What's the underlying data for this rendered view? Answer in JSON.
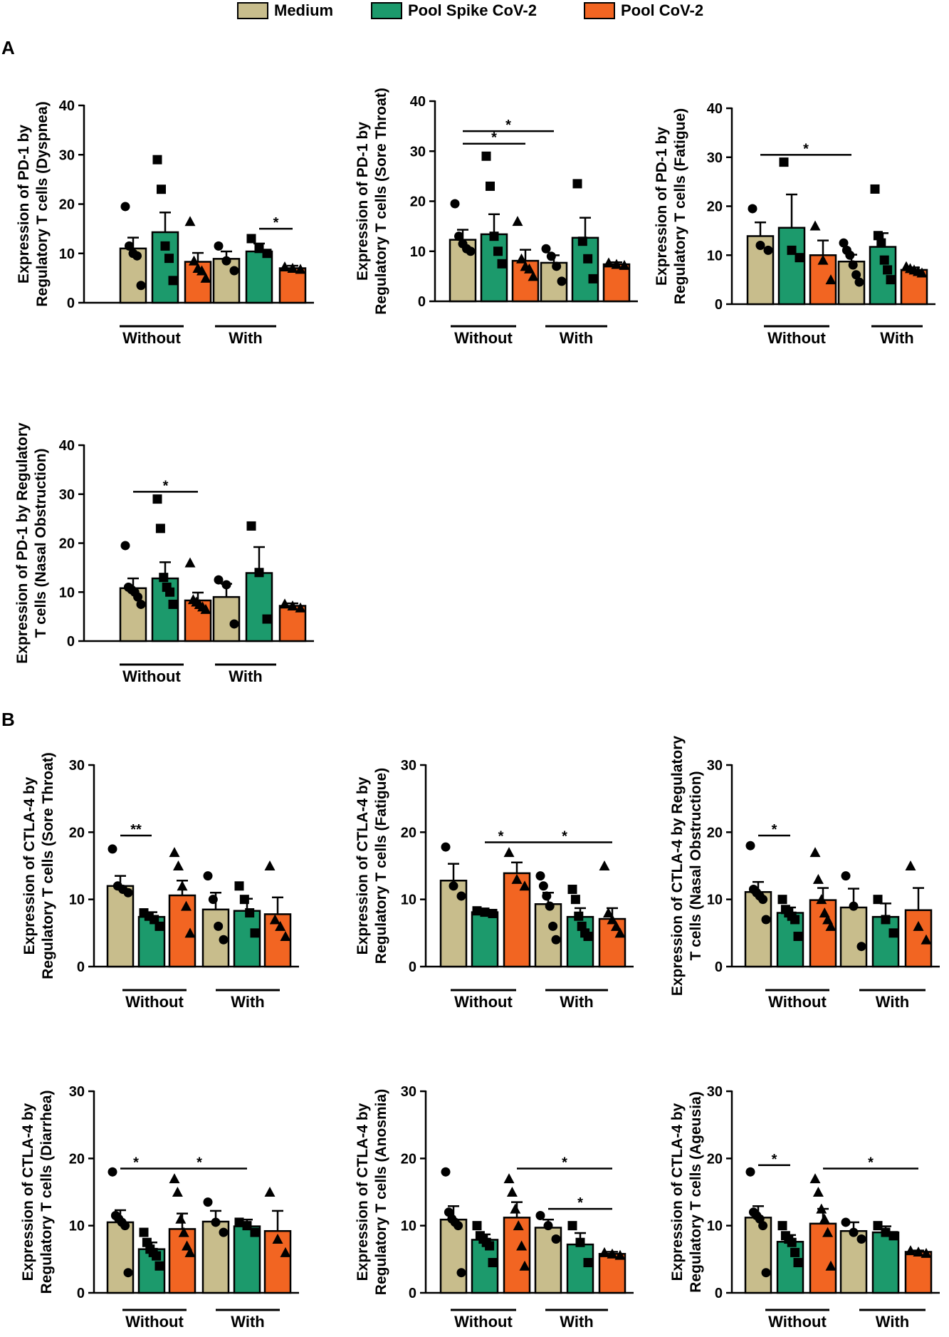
{
  "legend": {
    "items": [
      {
        "label": "Medium",
        "color": "#c8bd8c"
      },
      {
        "label": "Pool Spike CoV-2",
        "color": "#1c9a6c"
      },
      {
        "label": "Pool CoV-2",
        "color": "#f26522"
      }
    ]
  },
  "panel_labels": {
    "a": "A",
    "b": "B"
  },
  "chart_data": [
    {
      "type": "bar",
      "panel": "A",
      "ylabel": [
        "Expression of PD-1 by",
        "Regulatory T cells (Dyspnea)"
      ],
      "ylim": [
        0,
        40
      ],
      "yticks": [
        0,
        10,
        20,
        30,
        40
      ],
      "groups": [
        {
          "label": "Without",
          "bars": [
            {
              "mean": 11,
              "sem": 2.2,
              "pts": [
                19.5,
                11.5,
                10,
                9.5,
                3.5
              ]
            },
            {
              "mean": 14.3,
              "sem": 4,
              "pts": [
                29,
                23,
                11.5,
                9,
                4.5
              ]
            },
            {
              "mean": 8.3,
              "sem": 1.8,
              "pts": [
                16.5,
                8.5,
                7,
                6.5,
                5
              ]
            }
          ]
        },
        {
          "label": "With",
          "bars": [
            {
              "mean": 8.9,
              "sem": 1.5,
              "pts": [
                11.5,
                8.5,
                6.5
              ]
            },
            {
              "mean": 10.4,
              "sem": 1.6,
              "pts": [
                13,
                11,
                10
              ]
            },
            {
              "mean": 7,
              "sem": 0.5,
              "pts": [
                7.3,
                7,
                6.8
              ]
            }
          ]
        }
      ],
      "sig": [
        {
          "from": 4,
          "to": 5,
          "y": 15,
          "text": "*"
        }
      ]
    },
    {
      "type": "bar",
      "panel": "A",
      "ylabel": [
        "Expression of PD-1 by",
        "Regulatory T cells (Sore Throat)"
      ],
      "ylim": [
        0,
        40
      ],
      "yticks": [
        0,
        10,
        20,
        30,
        40
      ],
      "groups": [
        {
          "label": "Without",
          "bars": [
            {
              "mean": 12.3,
              "sem": 2,
              "pts": [
                19.5,
                13,
                11.5,
                10.5,
                10
              ]
            },
            {
              "mean": 13.4,
              "sem": 4,
              "pts": [
                29,
                23,
                13,
                10,
                7.5
              ]
            },
            {
              "mean": 8.1,
              "sem": 2.2,
              "pts": [
                16,
                8.5,
                7,
                6.5,
                5
              ]
            }
          ]
        },
        {
          "label": "With",
          "bars": [
            {
              "mean": 7.7,
              "sem": 1.5,
              "pts": [
                10.5,
                9,
                7,
                4
              ]
            },
            {
              "mean": 12.7,
              "sem": 4,
              "pts": [
                23.5,
                12,
                8.5,
                4.5
              ]
            },
            {
              "mean": 7.4,
              "sem": 0.4,
              "pts": [
                7.7,
                7.4,
                7.2
              ]
            }
          ]
        }
      ],
      "sig": [
        {
          "from": 0,
          "to": 2,
          "y": 31.5,
          "text": "*"
        },
        {
          "from": 0,
          "to": 3,
          "y": 34,
          "text": "*"
        }
      ]
    },
    {
      "type": "bar",
      "panel": "A",
      "ylabel": [
        "Expression of PD-1 by",
        "Regulatory T cells (Fatigue)"
      ],
      "ylim": [
        0,
        40
      ],
      "yticks": [
        0,
        10,
        20,
        30,
        40
      ],
      "groups": [
        {
          "label": "Without",
          "bars": [
            {
              "mean": 13.9,
              "sem": 2.8,
              "pts": [
                19.5,
                12,
                11
              ]
            },
            {
              "mean": 15.6,
              "sem": 6.8,
              "pts": [
                29,
                11,
                9.5
              ]
            },
            {
              "mean": 10,
              "sem": 3,
              "pts": [
                16,
                9,
                5
              ]
            }
          ]
        },
        {
          "label": "With",
          "bars": [
            {
              "mean": 8.7,
              "sem": 1.4,
              "pts": [
                12.5,
                11,
                10,
                8,
                6,
                4.5
              ]
            },
            {
              "mean": 11.7,
              "sem": 2.8,
              "pts": [
                23.5,
                14,
                12.5,
                9,
                7,
                5
              ]
            },
            {
              "mean": 7,
              "sem": 0.5,
              "pts": [
                7.7,
                7.3,
                7,
                6.7,
                6.4
              ]
            }
          ]
        }
      ],
      "sig": [
        {
          "from": 0,
          "to": 3,
          "y": 30.5,
          "text": "*"
        }
      ]
    },
    {
      "type": "bar",
      "panel": "A",
      "ylabel": [
        "Expression of PD-1 by Regulatory",
        "T cells (Nasal Obstruction)"
      ],
      "ylim": [
        0,
        40
      ],
      "yticks": [
        0,
        10,
        20,
        30,
        40
      ],
      "groups": [
        {
          "label": "Without",
          "bars": [
            {
              "mean": 10.8,
              "sem": 2,
              "pts": [
                19.5,
                11,
                10.5,
                10,
                9,
                7.5
              ]
            },
            {
              "mean": 12.8,
              "sem": 3.3,
              "pts": [
                29,
                23,
                13,
                11,
                10,
                7.5
              ]
            },
            {
              "mean": 8.3,
              "sem": 1.6,
              "pts": [
                16,
                8.5,
                8,
                7.5,
                7,
                6.5
              ]
            }
          ]
        },
        {
          "label": "With",
          "bars": [
            {
              "mean": 9,
              "sem": 2.7,
              "pts": [
                12.5,
                11.5,
                3.5
              ]
            },
            {
              "mean": 13.9,
              "sem": 5.3,
              "pts": [
                23.5,
                14,
                4.5
              ]
            },
            {
              "mean": 7.2,
              "sem": 0.5,
              "pts": [
                7.6,
                7.2,
                6.8
              ]
            }
          ]
        }
      ],
      "sig": [
        {
          "from": 0,
          "to": 2,
          "y": 30.5,
          "text": "*"
        }
      ]
    },
    {
      "type": "bar",
      "panel": "B",
      "ylabel": [
        "Expression of CTLA-4 by",
        "Regulatory T cells (Sore Throat)"
      ],
      "ylim": [
        0,
        30
      ],
      "yticks": [
        0,
        10,
        20,
        30
      ],
      "groups": [
        {
          "label": "Without",
          "bars": [
            {
              "mean": 12,
              "sem": 1.5,
              "pts": [
                17.5,
                12,
                11.5,
                11
              ]
            },
            {
              "mean": 7.4,
              "sem": 0.7,
              "pts": [
                8,
                7.5,
                7,
                6
              ]
            },
            {
              "mean": 10.6,
              "sem": 2.2,
              "pts": [
                17,
                15,
                12,
                9,
                5
              ]
            }
          ]
        },
        {
          "label": "With",
          "bars": [
            {
              "mean": 8.5,
              "sem": 2.5,
              "pts": [
                13.5,
                10,
                6,
                4
              ]
            },
            {
              "mean": 8.3,
              "sem": 1.8,
              "pts": [
                12,
                10,
                8,
                5
              ]
            },
            {
              "mean": 7.8,
              "sem": 2.5,
              "pts": [
                15,
                7,
                6,
                4.5
              ]
            }
          ]
        }
      ],
      "sig": [
        {
          "from": 0,
          "to": 1,
          "y": 19.5,
          "text": "**"
        }
      ]
    },
    {
      "type": "bar",
      "panel": "B",
      "ylabel": [
        "Expression of CTLA-4 by",
        "Regulatory T cells (Fatigue)"
      ],
      "ylim": [
        0,
        30
      ],
      "yticks": [
        0,
        10,
        20,
        30
      ],
      "groups": [
        {
          "label": "Without",
          "bars": [
            {
              "mean": 12.8,
              "sem": 2.5,
              "pts": [
                17.8,
                12,
                10.5
              ]
            },
            {
              "mean": 8.1,
              "sem": 0.2,
              "pts": [
                8.3,
                8.1,
                7.9
              ]
            },
            {
              "mean": 13.9,
              "sem": 1.6,
              "pts": [
                17,
                13,
                12
              ]
            }
          ]
        },
        {
          "label": "With",
          "bars": [
            {
              "mean": 9.3,
              "sem": 1.7,
              "pts": [
                13.5,
                12,
                10.5,
                9,
                6,
                4
              ]
            },
            {
              "mean": 7.4,
              "sem": 1.3,
              "pts": [
                11.5,
                10,
                7.5,
                6,
                5,
                4.5
              ]
            },
            {
              "mean": 7.1,
              "sem": 1.6,
              "pts": [
                15,
                8,
                7,
                6,
                5
              ]
            }
          ]
        }
      ],
      "sig": [
        {
          "from": 1,
          "to": 2,
          "y": 18.5,
          "text": "*"
        },
        {
          "from": 2,
          "to": 5,
          "y": 18.5,
          "text": "*"
        }
      ]
    },
    {
      "type": "bar",
      "panel": "B",
      "ylabel": [
        "Expression of CTLA-4 by  Regulatory",
        "T cells (Nasal Obstruction)"
      ],
      "ylim": [
        0,
        30
      ],
      "yticks": [
        0,
        10,
        20,
        30
      ],
      "groups": [
        {
          "label": "Without",
          "bars": [
            {
              "mean": 11.1,
              "sem": 1.5,
              "pts": [
                18,
                11.5,
                11,
                10.5,
                10,
                7
              ]
            },
            {
              "mean": 8,
              "sem": 0.8,
              "pts": [
                10,
                8.5,
                8,
                7.5,
                7,
                4.5
              ]
            },
            {
              "mean": 9.9,
              "sem": 1.8,
              "pts": [
                17,
                13,
                10,
                8,
                7,
                6
              ]
            }
          ]
        },
        {
          "label": "With",
          "bars": [
            {
              "mean": 8.8,
              "sem": 2.8,
              "pts": [
                13.5,
                9,
                3
              ]
            },
            {
              "mean": 7.4,
              "sem": 2,
              "pts": [
                10,
                7,
                5
              ]
            },
            {
              "mean": 8.4,
              "sem": 3.3,
              "pts": [
                15,
                6,
                4
              ]
            }
          ]
        }
      ],
      "sig": [
        {
          "from": 0,
          "to": 1,
          "y": 19.5,
          "text": "*"
        }
      ]
    },
    {
      "type": "bar",
      "panel": "B",
      "ylabel": [
        "Expression of CTLA-4 by",
        "Regulatory T cells (Diarrhea)"
      ],
      "ylim": [
        0,
        30
      ],
      "yticks": [
        0,
        10,
        20,
        30
      ],
      "groups": [
        {
          "label": "Without",
          "bars": [
            {
              "mean": 10.5,
              "sem": 1.8,
              "pts": [
                18,
                11.5,
                11,
                10.5,
                10,
                3
              ]
            },
            {
              "mean": 6.5,
              "sem": 1,
              "pts": [
                9,
                7.5,
                6.5,
                6,
                5.5,
                4
              ]
            },
            {
              "mean": 9.5,
              "sem": 2.3,
              "pts": [
                17,
                15,
                11,
                9,
                7,
                6
              ]
            }
          ]
        },
        {
          "label": "With",
          "bars": [
            {
              "mean": 10.6,
              "sem": 1.6,
              "pts": [
                13.5,
                10.5,
                9
              ]
            },
            {
              "mean": 9.9,
              "sem": 1,
              "pts": [
                10.5,
                10,
                9
              ]
            },
            {
              "mean": 9.2,
              "sem": 3,
              "pts": [
                15,
                8,
                6
              ]
            }
          ]
        }
      ],
      "sig": [
        {
          "from": 0,
          "to": 1,
          "y": 18.5,
          "text": "*"
        },
        {
          "from": 1,
          "to": 4,
          "y": 18.5,
          "text": "*"
        }
      ]
    },
    {
      "type": "bar",
      "panel": "B",
      "ylabel": [
        "Expression of CTLA-4 by",
        "Regulatory T cells (Anosmia)"
      ],
      "ylim": [
        0,
        30
      ],
      "yticks": [
        0,
        10,
        20,
        30
      ],
      "groups": [
        {
          "label": "Without",
          "bars": [
            {
              "mean": 10.9,
              "sem": 2,
              "pts": [
                18,
                12,
                11,
                10.5,
                10,
                3
              ]
            },
            {
              "mean": 7.9,
              "sem": 0.8,
              "pts": [
                10,
                8.5,
                8,
                7.5,
                7,
                4.5
              ]
            },
            {
              "mean": 11.2,
              "sem": 2.3,
              "pts": [
                17,
                15,
                12.5,
                10,
                7,
                4
              ]
            }
          ]
        },
        {
          "label": "With",
          "bars": [
            {
              "mean": 9.7,
              "sem": 1.2,
              "pts": [
                11.5,
                10,
                8
              ]
            },
            {
              "mean": 7.2,
              "sem": 1.7,
              "pts": [
                10,
                7.5,
                4.5
              ]
            },
            {
              "mean": 5.8,
              "sem": 0.3,
              "pts": [
                6,
                5.8,
                5.6
              ]
            }
          ]
        }
      ],
      "sig": [
        {
          "from": 2,
          "to": 5,
          "y": 18.5,
          "text": "*"
        },
        {
          "from": 3,
          "to": 5,
          "y": 12.5,
          "text": "*"
        }
      ]
    },
    {
      "type": "bar",
      "panel": "B",
      "ylabel": [
        "Expression of CTLA-4 by",
        "Regulatory T cells (Ageusia)"
      ],
      "ylim": [
        0,
        30
      ],
      "yticks": [
        0,
        10,
        20,
        30
      ],
      "groups": [
        {
          "label": "Without",
          "bars": [
            {
              "mean": 11.2,
              "sem": 1.7,
              "pts": [
                18,
                12,
                11.5,
                11,
                10,
                3
              ]
            },
            {
              "mean": 7.6,
              "sem": 1,
              "pts": [
                10,
                8.5,
                8,
                7.5,
                6,
                4.5
              ]
            },
            {
              "mean": 10.3,
              "sem": 2.2,
              "pts": [
                17,
                15,
                12.5,
                11,
                9,
                4
              ]
            }
          ]
        },
        {
          "label": "With",
          "bars": [
            {
              "mean": 9.2,
              "sem": 1.3,
              "pts": [
                10.5,
                9,
                8
              ]
            },
            {
              "mean": 9,
              "sem": 0.9,
              "pts": [
                10,
                9,
                8.5
              ]
            },
            {
              "mean": 6.1,
              "sem": 0.2,
              "pts": [
                6.3,
                6.1,
                5.9
              ]
            }
          ]
        }
      ],
      "sig": [
        {
          "from": 0,
          "to": 1,
          "y": 19,
          "text": "*"
        },
        {
          "from": 2,
          "to": 5,
          "y": 18.5,
          "text": "*"
        }
      ]
    }
  ]
}
